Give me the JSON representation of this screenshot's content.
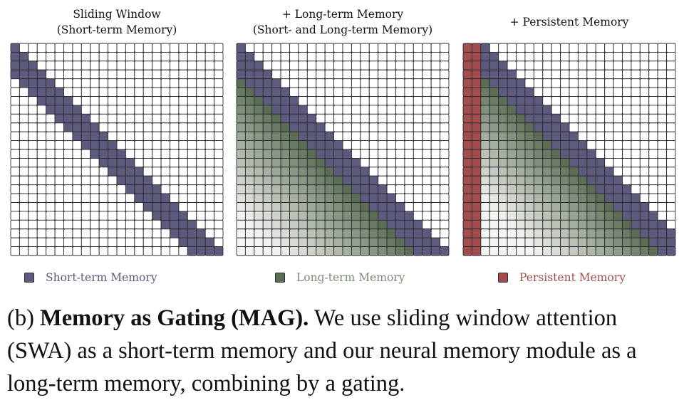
{
  "colors": {
    "short_term": "#5c5b7d",
    "long_term": "#5b6e55",
    "persistent": "#a24d4d",
    "grid_line": "#2d2d33",
    "empty": "#ffffff",
    "fade_light": "#f4f5f1"
  },
  "panels": [
    {
      "title_line1": "Sliding Window",
      "title_line2": "(Short-term Memory)",
      "n": 24,
      "window": 4,
      "persistent_cols": 0,
      "long_term": false
    },
    {
      "title_line1": "+ Long-term Memory",
      "title_line2": "(Short- and Long-term Memory)",
      "n": 24,
      "window": 4,
      "persistent_cols": 0,
      "long_term": true
    },
    {
      "title_line1": "+ Persistent Memory",
      "title_line2": "",
      "n": 24,
      "window": 4,
      "persistent_cols": 2,
      "long_term": true
    }
  ],
  "legend": [
    {
      "label": "Short-term Memory",
      "color": "#5c5b7d",
      "text_color": "#5c5b7d"
    },
    {
      "label": "Long-term Memory",
      "color": "#5b6e55",
      "text_color": "#7c8a78"
    },
    {
      "label": "Persistent Memory",
      "color": "#a24d4d",
      "text_color": "#a24d4d"
    }
  ],
  "caption": {
    "prefix": "(b) ",
    "bold": "Memory as Gating (MAG).",
    "rest": " We use sliding window attention (SWA) as a short-term memory and our neural memory module as a long-term memory, combining by a gating."
  }
}
